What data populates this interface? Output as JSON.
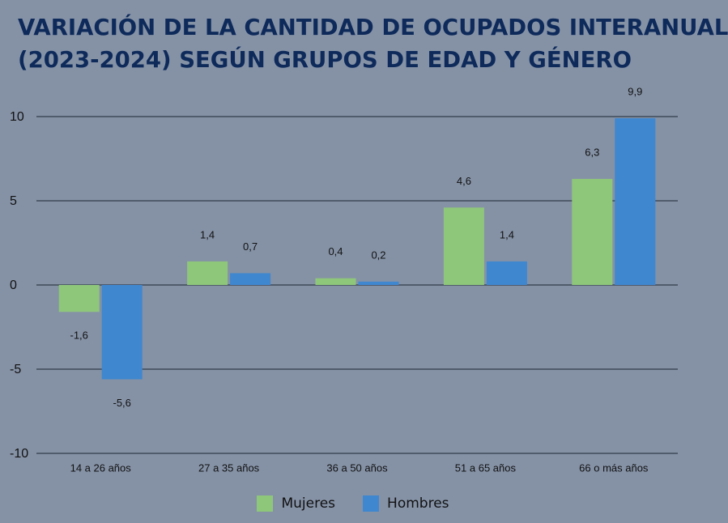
{
  "colors": {
    "background": "#8592a6",
    "title": "#0e2a5a",
    "mujeres": "#8ec67a",
    "hombres": "#3f87cf",
    "gridline": "#1c2430"
  },
  "chart_data": {
    "type": "bar",
    "title": "VARIACIÓN DE LA CANTIDAD DE OCUPADOS INTERANUAL (2023-2024) SEGÚN GRUPOS DE EDAD Y GÉNERO",
    "title_lines": [
      "VARIACIÓN DE LA CANTIDAD DE OCUPADOS INTERANUAL",
      "(2023-2024) SEGÚN GRUPOS DE EDAD Y GÉNERO"
    ],
    "categories": [
      "14 a 26 años",
      "27 a 35 años",
      "36 a 50 años",
      "51 a 65 años",
      "66 o más años"
    ],
    "series": [
      {
        "name": "Mujeres",
        "values": [
          -1.6,
          1.4,
          0.4,
          4.6,
          6.3
        ],
        "labels": [
          "-1,6",
          "1,4",
          "0,4",
          "4,6",
          "6,3"
        ]
      },
      {
        "name": "Hombres",
        "values": [
          -5.6,
          0.7,
          0.2,
          1.4,
          9.9
        ],
        "labels": [
          "-5,6",
          "0,7",
          "0,2",
          "1,4",
          "9,9"
        ]
      }
    ],
    "ylim": [
      -10,
      10
    ],
    "yticks": [
      10,
      5,
      0,
      -5,
      -10
    ],
    "ytick_labels": [
      "10",
      "5",
      "0",
      "-5",
      "-10"
    ],
    "xlabel": "",
    "ylabel": "",
    "grid": true,
    "legend_position": "bottom-center"
  }
}
